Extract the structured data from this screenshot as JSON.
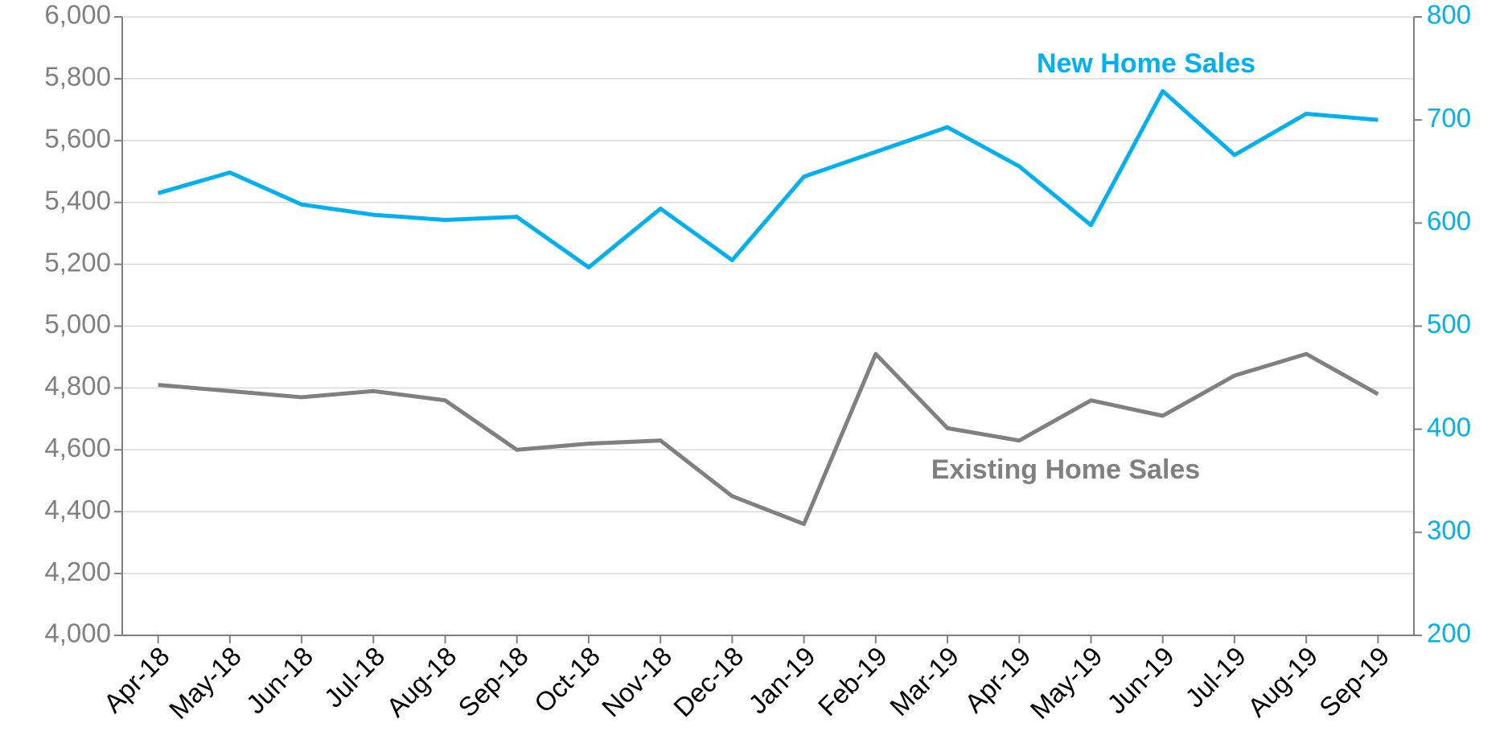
{
  "chart_data": {
    "type": "line",
    "annotations": [
      "New Home Sales",
      "Existing Home Sales"
    ],
    "categories": [
      "Apr-18",
      "May-18",
      "Jun-18",
      "Jul-18",
      "Aug-18",
      "Sep-18",
      "Oct-18",
      "Nov-18",
      "Dec-18",
      "Jan-19",
      "Feb-19",
      "Mar-19",
      "Apr-19",
      "May-19",
      "Jun-19",
      "Jul-19",
      "Aug-19",
      "Sep-19"
    ],
    "series": [
      {
        "name": "Existing Home Sales",
        "color": "#808080",
        "axis": "y",
        "values": [
          4810,
          4790,
          4770,
          4790,
          4760,
          4600,
          4620,
          4630,
          4450,
          4360,
          4910,
          4670,
          4630,
          4760,
          4710,
          4840,
          4910,
          4780
        ]
      },
      {
        "name": "New Home Sales",
        "color": "#00b0f0",
        "axis": "y2",
        "values": [
          629,
          649,
          618,
          608,
          603,
          606,
          557,
          614,
          564,
          645,
          669,
          693,
          655,
          598,
          728,
          666,
          706,
          700
        ]
      }
    ],
    "ylim": [
      4000,
      6000
    ],
    "yticks": [
      {
        "value": 4000,
        "label": "4,000"
      },
      {
        "value": 4200,
        "label": "4,200"
      },
      {
        "value": 4400,
        "label": "4,400"
      },
      {
        "value": 4600,
        "label": "4,600"
      },
      {
        "value": 4800,
        "label": "4,800"
      },
      {
        "value": 5000,
        "label": "5,000"
      },
      {
        "value": 5200,
        "label": "5,200"
      },
      {
        "value": 5400,
        "label": "5,400"
      },
      {
        "value": 5600,
        "label": "5,600"
      },
      {
        "value": 5800,
        "label": "5,800"
      },
      {
        "value": 6000,
        "label": "6,000"
      }
    ],
    "y2lim": [
      200,
      800
    ],
    "y2ticks": [
      200,
      300,
      400,
      500,
      600,
      700,
      800
    ],
    "y_color": "#808080",
    "y2_color": "#00b0f0",
    "grid": true
  }
}
